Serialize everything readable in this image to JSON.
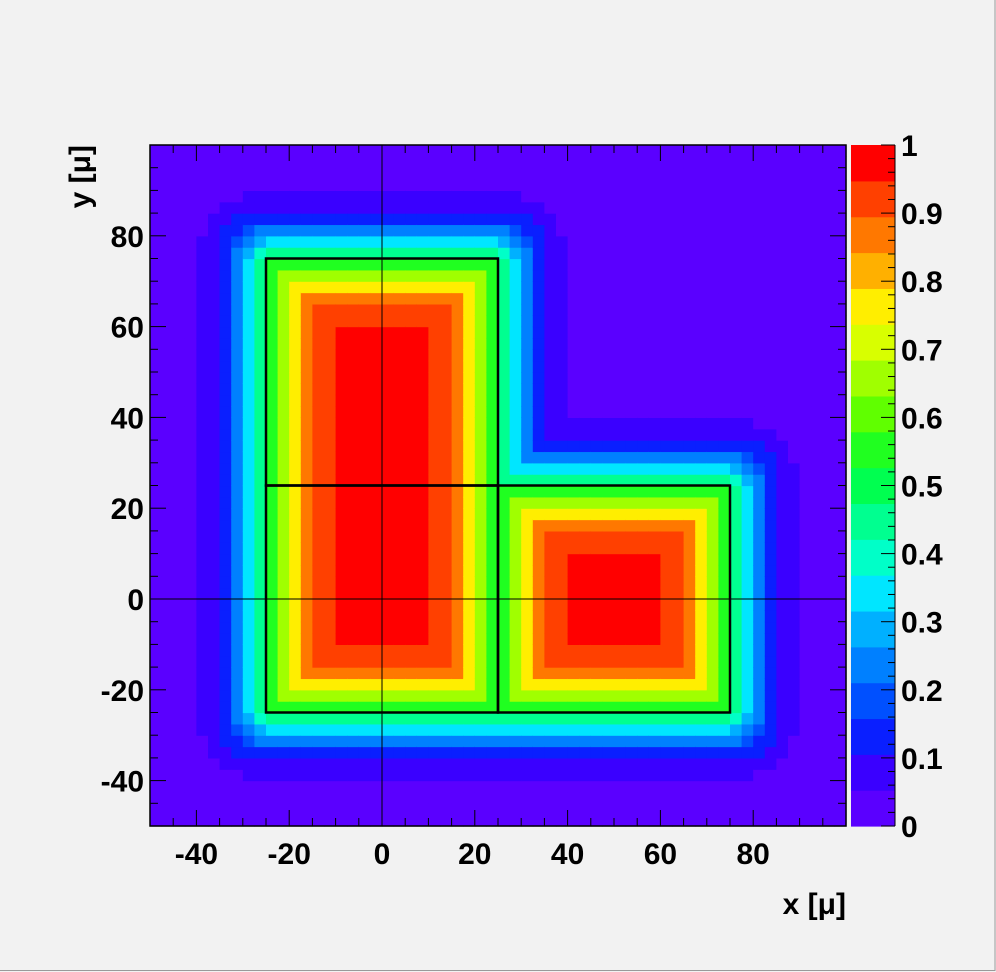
{
  "chart_data": {
    "type": "heatmap",
    "title": "",
    "xlabel": "x [μ]",
    "ylabel": "y [μ]",
    "xlim": [
      -50,
      100
    ],
    "ylim": [
      -50,
      100
    ],
    "x_ticks": [
      -40,
      -20,
      0,
      20,
      40,
      60,
      80
    ],
    "y_ticks": [
      -40,
      -20,
      0,
      20,
      40,
      60,
      80
    ],
    "z_range": [
      0,
      1
    ],
    "z_ticks": [
      0,
      0.1,
      0.2,
      0.3,
      0.4,
      0.5,
      0.6,
      0.7,
      0.8,
      0.9,
      1
    ],
    "z_tick_labels": [
      "0",
      "0.1",
      "0.2",
      "0.3",
      "0.4",
      "0.5",
      "0.6",
      "0.7",
      "0.8",
      "0.9",
      "1"
    ],
    "bin_size": 2.5,
    "grid": false,
    "crosshair_lines": {
      "x": 0,
      "y": 0
    },
    "field": {
      "description_units": "microns",
      "regions": [
        {
          "xmin": -25,
          "xmax": 25,
          "ymin": -25,
          "ymax": 75
        },
        {
          "xmin": 25,
          "xmax": 75,
          "ymin": -25,
          "ymax": 25
        }
      ],
      "falloff_scale": 12
    },
    "outline_boxes": [
      {
        "xmin": -25,
        "xmax": 25,
        "ymin": 25,
        "ymax": 75
      },
      {
        "xmin": -25,
        "xmax": 25,
        "ymin": -25,
        "ymax": 25
      },
      {
        "xmin": 25,
        "xmax": 75,
        "ymin": -25,
        "ymax": 25
      }
    ],
    "palette": [
      "#5a00ff",
      "#3a00ff",
      "#0a1fff",
      "#0050ff",
      "#0080ff",
      "#00b0ff",
      "#00e6ff",
      "#00ffc8",
      "#00ff90",
      "#00ff50",
      "#20ff20",
      "#60ff00",
      "#a0ff00",
      "#d8ff00",
      "#ffee00",
      "#ffb000",
      "#ff7800",
      "#ff4000",
      "#ff0000"
    ]
  }
}
